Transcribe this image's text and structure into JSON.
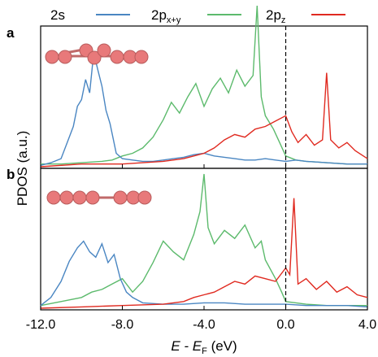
{
  "legend": [
    {
      "label": "2s",
      "color": "#4a86c2"
    },
    {
      "label": "2p",
      "sub": "x+y",
      "color": "#5cba6c"
    },
    {
      "label": "2p",
      "sub": "z",
      "color": "#e02a20"
    }
  ],
  "panel_labels": [
    "a",
    "b"
  ],
  "ylabel": "PDOS (a.u.)",
  "xlabel_main": "E - E",
  "xlabel_sub": "F",
  "xlabel_unit": " (eV)",
  "colors": {
    "s": "#4a86c2",
    "pxy": "#5cba6c",
    "pz": "#e02a20",
    "atom": "#e8797a",
    "fermi": "#000000"
  },
  "chart_data": [
    {
      "type": "line",
      "panel": "a",
      "xlim": [
        -12.0,
        4.0
      ],
      "xticks": [
        "-12.0",
        "-8.0",
        "-4.0",
        "0.0",
        "4.0"
      ],
      "fermi_level": 0.0,
      "series": [
        {
          "name": "2s",
          "x": [
            -12.0,
            -11.5,
            -11.0,
            -10.7,
            -10.4,
            -10.2,
            -10.0,
            -9.8,
            -9.6,
            -9.4,
            -9.2,
            -9.0,
            -8.8,
            -8.6,
            -8.3,
            -8.0,
            -7.5,
            -7.0,
            -6.5,
            -6.0,
            -5.5,
            -5.0,
            -4.5,
            -4.0,
            -3.5,
            -3.0,
            -2.5,
            -2.0,
            -1.5,
            -1.0,
            -0.5,
            0.0,
            0.5,
            1.0,
            2.0,
            3.0,
            4.0
          ],
          "y": [
            0.01,
            0.03,
            0.06,
            0.18,
            0.3,
            0.45,
            0.5,
            0.65,
            0.55,
            0.85,
            0.72,
            0.6,
            0.42,
            0.32,
            0.1,
            0.06,
            0.05,
            0.04,
            0.04,
            0.05,
            0.06,
            0.07,
            0.09,
            0.1,
            0.08,
            0.07,
            0.06,
            0.05,
            0.05,
            0.06,
            0.05,
            0.04,
            0.05,
            0.04,
            0.03,
            0.02,
            0.02
          ]
        },
        {
          "name": "2px+y",
          "x": [
            -12.0,
            -11.0,
            -10.0,
            -9.0,
            -8.5,
            -8.0,
            -7.5,
            -7.0,
            -6.5,
            -6.0,
            -5.6,
            -5.2,
            -4.8,
            -4.4,
            -4.0,
            -3.6,
            -3.2,
            -2.8,
            -2.4,
            -2.0,
            -1.6,
            -1.4,
            -1.2,
            -1.0,
            -0.6,
            -0.3,
            0.0,
            0.5,
            1.0,
            2.0,
            3.0,
            4.0
          ],
          "y": [
            0.02,
            0.02,
            0.03,
            0.04,
            0.05,
            0.08,
            0.1,
            0.14,
            0.22,
            0.35,
            0.48,
            0.4,
            0.52,
            0.62,
            0.45,
            0.58,
            0.66,
            0.55,
            0.72,
            0.6,
            0.68,
            1.2,
            0.52,
            0.38,
            0.28,
            0.18,
            0.08,
            0.05,
            0.04,
            0.03,
            0.02,
            0.02
          ]
        },
        {
          "name": "2pz",
          "x": [
            -12.0,
            -10.0,
            -8.0,
            -6.0,
            -5.0,
            -4.5,
            -4.0,
            -3.5,
            -3.0,
            -2.5,
            -2.0,
            -1.5,
            -1.0,
            -0.5,
            0.0,
            0.3,
            0.6,
            1.0,
            1.4,
            1.8,
            2.0,
            2.2,
            2.6,
            3.0,
            3.4,
            3.8,
            4.0
          ],
          "y": [
            0.0,
            0.02,
            0.02,
            0.04,
            0.06,
            0.08,
            0.1,
            0.14,
            0.2,
            0.24,
            0.22,
            0.28,
            0.3,
            0.34,
            0.38,
            0.26,
            0.18,
            0.24,
            0.16,
            0.2,
            0.7,
            0.2,
            0.14,
            0.18,
            0.12,
            0.08,
            0.06
          ]
        }
      ]
    },
    {
      "type": "line",
      "panel": "b",
      "xlim": [
        -12.0,
        4.0
      ],
      "xticks": [
        "-12.0",
        "-8.0",
        "-4.0",
        "0.0",
        "4.0"
      ],
      "fermi_level": 0.0,
      "series": [
        {
          "name": "2s",
          "x": [
            -12.0,
            -11.5,
            -11.0,
            -10.6,
            -10.2,
            -9.9,
            -9.6,
            -9.3,
            -9.0,
            -8.7,
            -8.4,
            -8.1,
            -7.8,
            -7.5,
            -7.0,
            -6.0,
            -5.0,
            -4.0,
            -3.0,
            -2.0,
            -1.0,
            0.0,
            1.0,
            2.0,
            3.0,
            4.0
          ],
          "y": [
            0.02,
            0.08,
            0.2,
            0.35,
            0.45,
            0.5,
            0.42,
            0.38,
            0.48,
            0.34,
            0.4,
            0.22,
            0.12,
            0.08,
            0.04,
            0.03,
            0.03,
            0.04,
            0.04,
            0.03,
            0.03,
            0.03,
            0.02,
            0.02,
            0.02,
            0.01
          ]
        },
        {
          "name": "2px+y",
          "x": [
            -12.0,
            -11.0,
            -10.0,
            -9.5,
            -9.0,
            -8.5,
            -8.0,
            -7.5,
            -7.0,
            -6.5,
            -6.0,
            -5.5,
            -5.0,
            -4.5,
            -4.2,
            -4.0,
            -3.8,
            -3.5,
            -3.0,
            -2.5,
            -2.0,
            -1.5,
            -1.2,
            -1.0,
            -0.5,
            -0.2,
            0.0,
            0.5,
            1.0,
            2.0,
            3.0,
            4.0
          ],
          "y": [
            0.02,
            0.05,
            0.08,
            0.12,
            0.14,
            0.18,
            0.22,
            0.12,
            0.2,
            0.34,
            0.5,
            0.42,
            0.36,
            0.55,
            0.72,
            1.0,
            0.6,
            0.48,
            0.58,
            0.52,
            0.62,
            0.45,
            0.5,
            0.36,
            0.22,
            0.12,
            0.05,
            0.04,
            0.03,
            0.02,
            0.02,
            0.02
          ]
        },
        {
          "name": "2pz",
          "x": [
            -12.0,
            -10.0,
            -8.0,
            -6.0,
            -5.0,
            -4.5,
            -4.0,
            -3.5,
            -3.0,
            -2.5,
            -2.0,
            -1.5,
            -1.0,
            -0.5,
            0.0,
            0.2,
            0.4,
            0.6,
            1.0,
            1.5,
            2.0,
            2.5,
            3.0,
            3.5,
            4.0
          ],
          "y": [
            0.0,
            0.01,
            0.02,
            0.03,
            0.05,
            0.08,
            0.1,
            0.12,
            0.16,
            0.2,
            0.18,
            0.24,
            0.22,
            0.2,
            0.3,
            0.25,
            0.82,
            0.18,
            0.22,
            0.14,
            0.2,
            0.12,
            0.16,
            0.1,
            0.08
          ]
        }
      ]
    }
  ]
}
